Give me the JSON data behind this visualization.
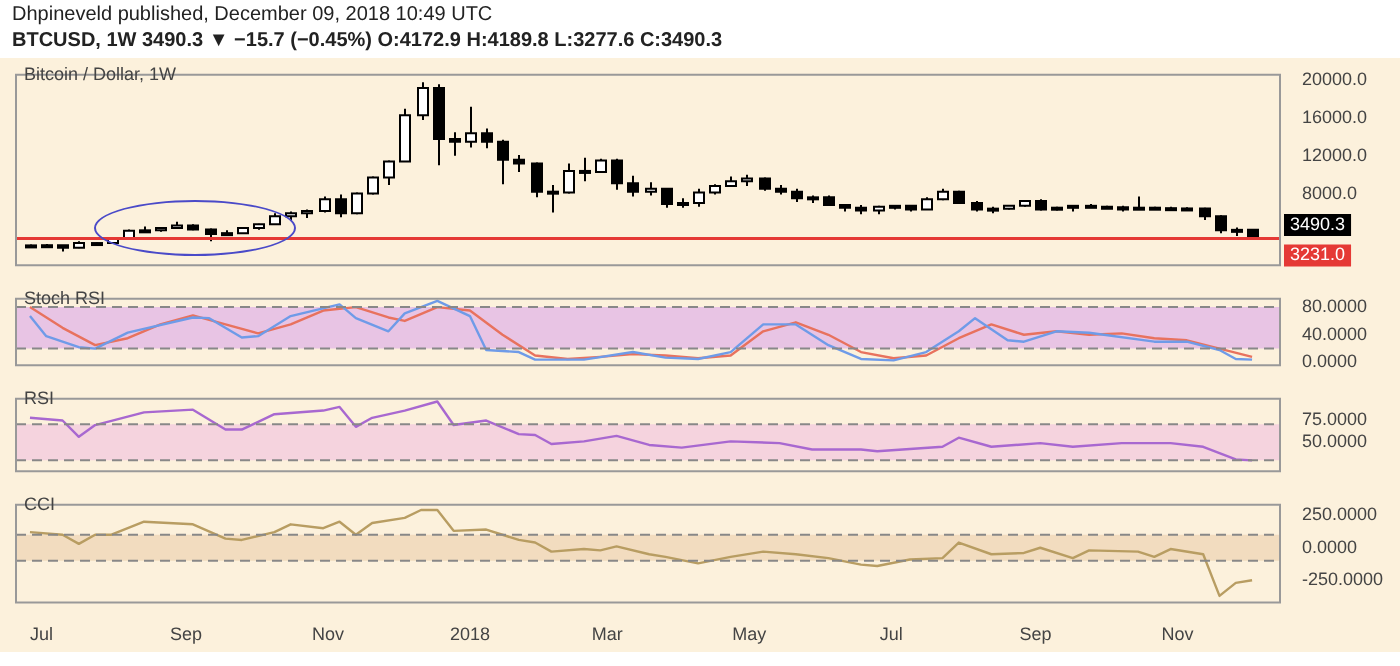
{
  "chart_data": [
    {
      "type": "candlestick",
      "title": "Dhpineveld published, December 09, 2018 10:49 UTC",
      "subtitle": "BTCUSD, 1W 3490.3 ▼ −15.7 (−0.45%) O:4172.9 H:4189.8 L:3277.6 C:3490.3",
      "colors": [
        "#ffffff",
        "#ffffff",
        "#000000",
        "#ffffff",
        "#ffffff",
        "#ffffff",
        "#ffffff",
        "#ffffff",
        "#ffffff",
        "#ffffff",
        "#000000",
        "#000000",
        "#ffffff",
        "#ffffff",
        "#ffffff",
        "#ffffff",
        "#ffffff",
        "#ffffff",
        "#ffffff",
        "#000000",
        "#ffffff",
        "#ffffff",
        "#ffffff",
        "#ffffff",
        "#ffffff",
        "#000000",
        "#000000",
        "#ffffff",
        "#000000",
        "#000000",
        "#000000",
        "#000000",
        "#000000",
        "#ffffff",
        "#000000",
        "#ffffff",
        "#000000",
        "#000000",
        "#ffffff",
        "#000000",
        "#ffffff",
        "#ffffff",
        "#ffffff",
        "#ffffff",
        "#ffffff",
        "#000000",
        "#000000",
        "#000000",
        "#ffffff",
        "#000000",
        "#000000",
        "#000000",
        "#ffffff",
        "#ffffff",
        "#000000",
        "#ffffff",
        "#ffffff",
        "#000000",
        "#000000",
        "#ffffff",
        "#ffffff",
        "#ffffff",
        "#000000",
        "#ffffff",
        "#ffffff",
        "#000000",
        "#000000",
        "#000000",
        "#ffffff",
        "#000000",
        "#000000",
        "#ffffff",
        "#000000",
        "#000000",
        "#ffffff",
        "#000000"
      ],
      "annotations": [
        "Bitcoin / Dollar, 1W",
        "3490.3"
      ],
      "x": [
        "2017-06-26",
        "2017-07-03",
        "2017-07-10",
        "2017-07-17",
        "2017-07-24",
        "2017-07-31",
        "2017-08-07",
        "2017-08-14",
        "2017-08-21",
        "2017-08-28",
        "2017-09-04",
        "2017-09-11",
        "2017-09-18",
        "2017-09-25",
        "2017-10-02",
        "2017-10-09",
        "2017-10-16",
        "2017-10-23",
        "2017-10-30",
        "2017-11-06",
        "2017-11-13",
        "2017-11-20",
        "2017-11-27",
        "2017-12-04",
        "2017-12-11",
        "2017-12-18",
        "2017-12-25",
        "2018-01-01",
        "2018-01-08",
        "2018-01-15",
        "2018-01-22",
        "2018-01-29",
        "2018-02-05",
        "2018-02-12",
        "2018-02-19",
        "2018-02-26",
        "2018-03-05",
        "2018-03-12",
        "2018-03-19",
        "2018-03-26",
        "2018-04-02",
        "2018-04-09",
        "2018-04-16",
        "2018-04-23",
        "2018-04-30",
        "2018-05-07",
        "2018-05-14",
        "2018-05-21",
        "2018-05-28",
        "2018-06-04",
        "2018-06-11",
        "2018-06-18",
        "2018-06-25",
        "2018-07-02",
        "2018-07-09",
        "2018-07-16",
        "2018-07-23",
        "2018-07-30",
        "2018-08-06",
        "2018-08-13",
        "2018-08-20",
        "2018-08-27",
        "2018-09-03",
        "2018-09-10",
        "2018-09-17",
        "2018-09-24",
        "2018-10-01",
        "2018-10-08",
        "2018-10-15",
        "2018-10-22",
        "2018-10-29",
        "2018-11-05",
        "2018-11-12",
        "2018-11-19",
        "2018-11-26",
        "2018-12-03"
      ],
      "ohlc": [
        [
          2450,
          2600,
          2400,
          2500
        ],
        [
          2500,
          2650,
          2450,
          2520
        ],
        [
          2520,
          2550,
          1850,
          2250
        ],
        [
          2250,
          2950,
          2200,
          2750
        ],
        [
          2750,
          2800,
          2550,
          2750
        ],
        [
          2750,
          3300,
          2650,
          3250
        ],
        [
          3250,
          4200,
          3200,
          4050
        ],
        [
          4050,
          4500,
          3950,
          4100
        ],
        [
          4100,
          4400,
          3950,
          4350
        ],
        [
          4350,
          5000,
          4250,
          4600
        ],
        [
          4600,
          4750,
          4100,
          4200
        ],
        [
          4200,
          4300,
          2950,
          3700
        ],
        [
          3700,
          4100,
          3500,
          3800
        ],
        [
          3800,
          4400,
          3750,
          4350
        ],
        [
          4350,
          4800,
          4150,
          4750
        ],
        [
          4750,
          5900,
          4700,
          5600
        ],
        [
          5600,
          6100,
          5100,
          5900
        ],
        [
          5900,
          6300,
          5400,
          6150
        ],
        [
          6150,
          7700,
          6000,
          7400
        ],
        [
          7400,
          7900,
          5500,
          5900
        ],
        [
          5900,
          8100,
          5800,
          8000
        ],
        [
          8000,
          9800,
          7900,
          9700
        ],
        [
          9700,
          11500,
          8900,
          11400
        ],
        [
          11400,
          17000,
          11400,
          16300
        ],
        [
          16300,
          19800,
          15800,
          19200
        ],
        [
          19200,
          19600,
          11000,
          13800
        ],
        [
          13800,
          14500,
          12000,
          13500
        ],
        [
          13500,
          17200,
          12900,
          14400
        ],
        [
          14400,
          14900,
          12800,
          13500
        ],
        [
          13500,
          13700,
          9000,
          11600
        ],
        [
          11600,
          12100,
          10300,
          11200
        ],
        [
          11200,
          11300,
          7600,
          8200
        ],
        [
          8200,
          8900,
          6000,
          8100
        ],
        [
          8100,
          11200,
          8000,
          10400
        ],
        [
          10400,
          11800,
          9300,
          10300
        ],
        [
          10300,
          11700,
          10200,
          11500
        ],
        [
          11500,
          11700,
          8400,
          9100
        ],
        [
          9100,
          9900,
          7700,
          8200
        ],
        [
          8200,
          9200,
          7800,
          8500
        ],
        [
          8500,
          8600,
          6500,
          6900
        ],
        [
          6900,
          7500,
          6500,
          7000
        ],
        [
          7000,
          8500,
          6600,
          8100
        ],
        [
          8100,
          9000,
          7900,
          8800
        ],
        [
          8800,
          9800,
          8700,
          9300
        ],
        [
          9300,
          10000,
          8800,
          9600
        ],
        [
          9600,
          9700,
          8300,
          8500
        ],
        [
          8500,
          8900,
          7900,
          8200
        ],
        [
          8200,
          8500,
          7100,
          7500
        ],
        [
          7500,
          7800,
          7000,
          7600
        ],
        [
          7600,
          7800,
          6700,
          6800
        ],
        [
          6800,
          6900,
          6100,
          6500
        ],
        [
          6500,
          6800,
          5800,
          6200
        ],
        [
          6200,
          6700,
          5800,
          6600
        ],
        [
          6600,
          6800,
          6300,
          6700
        ],
        [
          6700,
          6800,
          6100,
          6300
        ],
        [
          6300,
          7600,
          6300,
          7400
        ],
        [
          7400,
          8500,
          7300,
          8200
        ],
        [
          8200,
          8300,
          6900,
          7000
        ],
        [
          7000,
          7200,
          6100,
          6300
        ],
        [
          6300,
          6600,
          5900,
          6400
        ],
        [
          6400,
          6800,
          6300,
          6700
        ],
        [
          6700,
          7300,
          6600,
          7200
        ],
        [
          7200,
          7400,
          6200,
          6300
        ],
        [
          6300,
          6600,
          6200,
          6500
        ],
        [
          6500,
          6800,
          6100,
          6700
        ],
        [
          6700,
          6900,
          6500,
          6600
        ],
        [
          6600,
          6700,
          6500,
          6550
        ],
        [
          6550,
          6700,
          6100,
          6300
        ],
        [
          6300,
          7700,
          6300,
          6500
        ],
        [
          6500,
          6600,
          6400,
          6450
        ],
        [
          6450,
          6600,
          6350,
          6400
        ],
        [
          6400,
          6550,
          6350,
          6420
        ],
        [
          6420,
          6500,
          5200,
          5600
        ],
        [
          5600,
          5700,
          3800,
          4100
        ],
        [
          4100,
          4400,
          3500,
          4150
        ],
        [
          4172.9,
          4189.8,
          3277.6,
          3490.3
        ]
      ],
      "xlim": [
        "2017-06-20",
        "2018-12-15"
      ],
      "ylim": [
        400,
        20600
      ],
      "yticks": [
        {
          "value": 8000,
          "label": "8000.0"
        },
        {
          "value": 12000,
          "label": "12000.0"
        },
        {
          "value": 16000,
          "label": "16000.0"
        },
        {
          "value": 20000,
          "label": "20000.0"
        }
      ],
      "ref_lines": [
        {
          "axis": "y",
          "value": 3231.0,
          "label": "3231.0",
          "color": "#e53935"
        }
      ],
      "tick_labels": "y"
    },
    {
      "type": "line",
      "title": "Stoch RSI",
      "series": [
        {
          "color": "#6f9be8",
          "x": [
            "2017-06-26",
            "2017-07-03",
            "2017-07-17",
            "2017-07-24",
            "2017-08-07",
            "2017-09-04",
            "2017-09-11",
            "2017-09-25",
            "2017-10-02",
            "2017-10-16",
            "2017-11-06",
            "2017-11-13",
            "2017-11-27",
            "2017-12-04",
            "2017-12-18",
            "2018-01-01",
            "2018-01-08",
            "2018-01-22",
            "2018-01-29",
            "2018-02-19",
            "2018-03-12",
            "2018-03-26",
            "2018-04-09",
            "2018-04-23",
            "2018-05-07",
            "2018-05-21",
            "2018-06-04",
            "2018-06-18",
            "2018-07-02",
            "2018-07-16",
            "2018-07-30",
            "2018-08-06",
            "2018-08-20",
            "2018-08-27",
            "2018-09-10",
            "2018-09-24",
            "2018-10-22",
            "2018-11-05",
            "2018-11-19",
            "2018-11-26",
            "2018-12-03"
          ],
          "values": [
            67,
            38,
            22,
            20,
            43,
            65,
            64,
            36,
            38,
            67,
            84,
            64,
            45,
            71,
            89,
            67,
            18,
            15,
            4,
            4,
            15,
            7,
            5,
            15,
            55,
            55,
            25,
            5,
            3,
            15,
            45,
            64,
            32,
            30,
            45,
            43,
            30,
            30,
            18,
            5,
            4
          ]
        },
        {
          "color": "#e8725e",
          "x": [
            "2017-06-26",
            "2017-07-10",
            "2017-07-24",
            "2017-08-07",
            "2017-08-21",
            "2017-09-04",
            "2017-09-18",
            "2017-10-02",
            "2017-10-16",
            "2017-10-30",
            "2017-11-13",
            "2017-11-27",
            "2017-12-04",
            "2017-12-18",
            "2018-01-01",
            "2018-01-15",
            "2018-01-29",
            "2018-02-12",
            "2018-02-26",
            "2018-03-12",
            "2018-03-26",
            "2018-04-09",
            "2018-04-23",
            "2018-05-07",
            "2018-05-21",
            "2018-06-04",
            "2018-06-18",
            "2018-07-02",
            "2018-07-16",
            "2018-07-30",
            "2018-08-13",
            "2018-08-27",
            "2018-09-10",
            "2018-09-24",
            "2018-10-08",
            "2018-10-22",
            "2018-11-05",
            "2018-11-19",
            "2018-12-03"
          ],
          "values": [
            80,
            50,
            25,
            35,
            55,
            68,
            55,
            42,
            55,
            75,
            80,
            65,
            60,
            80,
            75,
            40,
            10,
            5,
            8,
            12,
            10,
            6,
            10,
            45,
            58,
            40,
            15,
            6,
            10,
            35,
            55,
            40,
            45,
            40,
            42,
            35,
            32,
            20,
            8
          ]
        }
      ],
      "xlim": [
        "2017-06-20",
        "2018-12-15"
      ],
      "ylim": [
        -4,
        92
      ],
      "yticks": [
        {
          "value": 0,
          "label": "0.0000"
        },
        {
          "value": 40,
          "label": "40.0000"
        },
        {
          "value": 80,
          "label": "80.0000"
        }
      ],
      "bands": [
        {
          "axis": "y",
          "from": 20,
          "to": 80,
          "color": "#e8c4e4"
        }
      ],
      "ref_lines": [
        {
          "axis": "y",
          "value": 20,
          "color": "#888888",
          "line_style": "dashed"
        },
        {
          "axis": "y",
          "value": 80,
          "color": "#888888",
          "line_style": "dashed"
        }
      ],
      "tick_labels": "y"
    },
    {
      "type": "line",
      "title": "RSI",
      "series": [
        {
          "color": "#a868d0",
          "x": [
            "2017-06-26",
            "2017-07-10",
            "2017-07-17",
            "2017-07-24",
            "2017-08-14",
            "2017-09-04",
            "2017-09-18",
            "2017-09-25",
            "2017-10-09",
            "2017-10-30",
            "2017-11-06",
            "2017-11-13",
            "2017-11-20",
            "2017-12-04",
            "2017-12-18",
            "2017-12-25",
            "2018-01-08",
            "2018-01-22",
            "2018-01-29",
            "2018-02-05",
            "2018-02-19",
            "2018-03-05",
            "2018-03-19",
            "2018-04-02",
            "2018-04-23",
            "2018-05-14",
            "2018-05-28",
            "2018-06-18",
            "2018-06-25",
            "2018-07-23",
            "2018-07-30",
            "2018-08-13",
            "2018-09-03",
            "2018-09-17",
            "2018-10-08",
            "2018-10-29",
            "2018-11-12",
            "2018-11-26",
            "2018-12-03"
          ],
          "values": [
            77,
            74,
            56,
            69,
            83,
            86,
            64,
            64,
            81,
            85,
            89,
            67,
            77,
            85,
            95,
            69,
            74,
            59,
            58,
            48,
            51,
            57,
            47,
            44,
            51,
            49,
            42,
            42,
            40,
            45,
            55,
            45,
            49,
            45,
            49,
            49,
            45,
            31,
            30
          ]
        }
      ],
      "xlim": [
        "2017-06-20",
        "2018-12-15"
      ],
      "ylim": [
        18,
        98
      ],
      "yticks": [
        {
          "value": 50,
          "label": "50.0000"
        },
        {
          "value": 75,
          "label": "75.0000"
        }
      ],
      "bands": [
        {
          "axis": "y",
          "from": 30,
          "to": 70,
          "color": "#f5d3de"
        }
      ],
      "ref_lines": [
        {
          "axis": "y",
          "value": 30,
          "color": "#888888",
          "line_style": "dashed"
        },
        {
          "axis": "y",
          "value": 70,
          "color": "#888888",
          "line_style": "dashed"
        }
      ],
      "tick_labels": "y"
    },
    {
      "type": "line",
      "title": "CCI",
      "series": [
        {
          "color": "#b89d62",
          "x": [
            "2017-06-26",
            "2017-07-10",
            "2017-07-17",
            "2017-07-24",
            "2017-07-31",
            "2017-08-14",
            "2017-09-04",
            "2017-09-18",
            "2017-09-25",
            "2017-10-09",
            "2017-10-16",
            "2017-10-30",
            "2017-11-06",
            "2017-11-13",
            "2017-11-20",
            "2017-12-04",
            "2017-12-11",
            "2017-12-18",
            "2017-12-25",
            "2018-01-08",
            "2018-01-22",
            "2018-01-29",
            "2018-02-05",
            "2018-02-19",
            "2018-02-26",
            "2018-03-05",
            "2018-03-19",
            "2018-03-26",
            "2018-04-09",
            "2018-04-23",
            "2018-05-07",
            "2018-05-21",
            "2018-06-04",
            "2018-06-18",
            "2018-06-25",
            "2018-07-09",
            "2018-07-23",
            "2018-07-30",
            "2018-08-13",
            "2018-08-27",
            "2018-09-03",
            "2018-09-17",
            "2018-09-24",
            "2018-10-15",
            "2018-10-22",
            "2018-10-29",
            "2018-11-12",
            "2018-11-19",
            "2018-11-26",
            "2018-12-03"
          ],
          "values": [
            120,
            100,
            30,
            100,
            100,
            200,
            180,
            70,
            60,
            120,
            180,
            150,
            200,
            100,
            190,
            230,
            290,
            290,
            130,
            140,
            60,
            40,
            -30,
            -10,
            -20,
            10,
            -50,
            -70,
            -120,
            -70,
            -30,
            -50,
            -80,
            -130,
            -140,
            -90,
            -80,
            40,
            -50,
            -40,
            0,
            -80,
            -20,
            -30,
            -70,
            -10,
            -50,
            -370,
            -270,
            -250
          ]
        }
      ],
      "xlim": [
        "2017-06-20",
        "2018-12-15"
      ],
      "xticks": [
        {
          "value": "2017-07-01",
          "label": "Jul"
        },
        {
          "value": "2017-09-01",
          "label": "Sep"
        },
        {
          "value": "2017-11-01",
          "label": "Nov"
        },
        {
          "value": "2018-01-01",
          "label": "2018"
        },
        {
          "value": "2018-03-01",
          "label": "Mar"
        },
        {
          "value": "2018-05-01",
          "label": "May"
        },
        {
          "value": "2018-07-01",
          "label": "Jul"
        },
        {
          "value": "2018-09-01",
          "label": "Sep"
        },
        {
          "value": "2018-11-01",
          "label": "Nov"
        }
      ],
      "ylim": [
        -420,
        330
      ],
      "yticks": [
        {
          "value": -250,
          "label": "-250.0000"
        },
        {
          "value": 0,
          "label": "0.0000"
        },
        {
          "value": 250,
          "label": "250.0000"
        }
      ],
      "bands": [
        {
          "axis": "y",
          "from": -100,
          "to": 100,
          "color": "#f2dcbf"
        }
      ],
      "ref_lines": [
        {
          "axis": "y",
          "value": -100,
          "color": "#888888",
          "line_style": "dashed"
        },
        {
          "axis": "y",
          "value": 100,
          "color": "#888888",
          "line_style": "dashed"
        }
      ]
    }
  ]
}
